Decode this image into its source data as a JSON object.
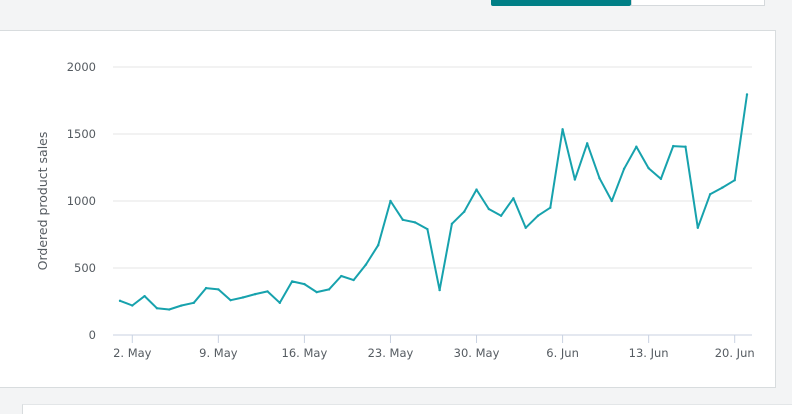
{
  "view_toggle": {
    "active_label": "",
    "inactive_label": ""
  },
  "chart_data": {
    "type": "line",
    "title": "",
    "xlabel": "",
    "ylabel": "Ordered product sales",
    "ylim": [
      0,
      2000
    ],
    "y_ticks": [
      {
        "value": 0,
        "label": "0"
      },
      {
        "value": 500,
        "label": "500"
      },
      {
        "value": 1000,
        "label": "1000"
      },
      {
        "value": 1500,
        "label": "1500"
      },
      {
        "value": 2000,
        "label": "2000"
      }
    ],
    "x_ticks": [
      {
        "index": 1,
        "label": "2. May"
      },
      {
        "index": 8,
        "label": "9. May"
      },
      {
        "index": 15,
        "label": "16. May"
      },
      {
        "index": 22,
        "label": "23. May"
      },
      {
        "index": 29,
        "label": "30. May"
      },
      {
        "index": 36,
        "label": "6. Jun"
      },
      {
        "index": 43,
        "label": "13. Jun"
      },
      {
        "index": 50,
        "label": "20. Jun"
      }
    ],
    "x": [
      "1 May",
      "2 May",
      "3 May",
      "4 May",
      "5 May",
      "6 May",
      "7 May",
      "8 May",
      "9 May",
      "10 May",
      "11 May",
      "12 May",
      "13 May",
      "14 May",
      "15 May",
      "16 May",
      "17 May",
      "18 May",
      "19 May",
      "20 May",
      "21 May",
      "22 May",
      "23 May",
      "24 May",
      "25 May",
      "26 May",
      "27 May",
      "28 May",
      "29 May",
      "30 May",
      "31 May",
      "1 Jun",
      "2 Jun",
      "3 Jun",
      "4 Jun",
      "5 Jun",
      "6 Jun",
      "7 Jun",
      "8 Jun",
      "9 Jun",
      "10 Jun",
      "11 Jun",
      "12 Jun",
      "13 Jun",
      "14 Jun",
      "15 Jun",
      "16 Jun",
      "17 Jun",
      "18 Jun",
      "19 Jun",
      "20 Jun",
      "21 Jun"
    ],
    "series": [
      {
        "color": "#17a2ad",
        "values": [
          255,
          220,
          290,
          200,
          190,
          220,
          240,
          350,
          340,
          260,
          280,
          305,
          325,
          240,
          400,
          380,
          320,
          340,
          440,
          410,
          525,
          670,
          1000,
          860,
          840,
          790,
          335,
          830,
          920,
          1085,
          940,
          890,
          1020,
          800,
          890,
          950,
          1535,
          1160,
          1430,
          1170,
          1000,
          1240,
          1405,
          1245,
          1165,
          1410,
          1405,
          800,
          1050,
          1100,
          1155,
          1795
        ]
      }
    ],
    "grid": true
  }
}
